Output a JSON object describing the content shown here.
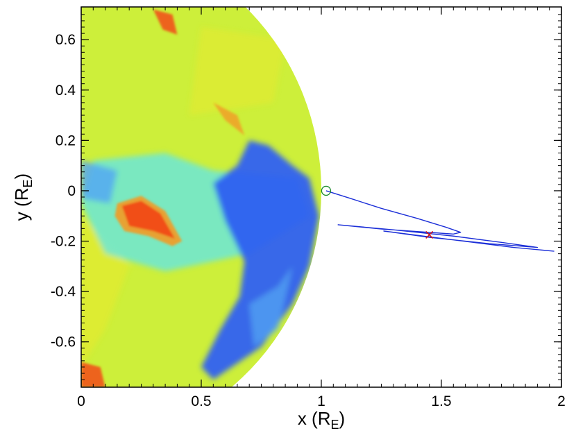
{
  "chart_data": {
    "type": "line",
    "title": "",
    "xlabel": "x (R",
    "xlabel_sub": "E",
    "xlabel_close": ")",
    "ylabel": "y (R",
    "ylabel_sub": "E",
    "ylabel_close": ")",
    "xlim": [
      0,
      2
    ],
    "ylim": [
      -0.78,
      0.73
    ],
    "x_ticks": [
      0,
      0.5,
      1,
      1.5,
      2
    ],
    "x_tick_labels": [
      "0",
      "0.5",
      "1",
      "1.5",
      "2"
    ],
    "y_ticks": [
      -0.6,
      -0.4,
      -0.2,
      0,
      0.2,
      0.4,
      0.6
    ],
    "y_tick_labels": [
      "-0.6",
      "-0.4",
      "-0.2",
      "0",
      "0.2",
      "0.4",
      "0.6"
    ],
    "grid": false,
    "background_map": {
      "description_colors": {
        "base": "#cdef3a",
        "green": "#b9ee4f",
        "yellow": "#e8ea2e",
        "orange": "#f39a25",
        "red": "#f24a14",
        "cyan": "#5ee6ee",
        "light_blue": "#55a8f2",
        "blue": "#2e5ff2"
      }
    },
    "series": [
      {
        "values": [
          [
            1.02,
            0.0
          ],
          [
            1.12,
            -0.03
          ],
          [
            1.25,
            -0.07
          ],
          [
            1.4,
            -0.11
          ],
          [
            1.52,
            -0.145
          ],
          [
            1.58,
            -0.165
          ],
          [
            1.55,
            -0.172
          ],
          [
            1.4,
            -0.162
          ],
          [
            1.25,
            -0.152
          ],
          [
            1.07,
            -0.135
          ],
          [
            1.3,
            -0.155
          ],
          [
            1.55,
            -0.18
          ],
          [
            1.75,
            -0.205
          ],
          [
            1.9,
            -0.225
          ],
          [
            1.7,
            -0.21
          ],
          [
            1.45,
            -0.185
          ],
          [
            1.26,
            -0.16
          ],
          [
            1.55,
            -0.195
          ],
          [
            1.8,
            -0.225
          ],
          [
            1.97,
            -0.24
          ]
        ],
        "color": "#1c2fd8"
      }
    ],
    "markers": [
      {
        "symbol": "circle",
        "x": 1.02,
        "y": 0.0,
        "color": "#1a8a2a"
      },
      {
        "symbol": "x",
        "x": 1.45,
        "y": -0.175,
        "color": "#d81a1a"
      }
    ]
  }
}
